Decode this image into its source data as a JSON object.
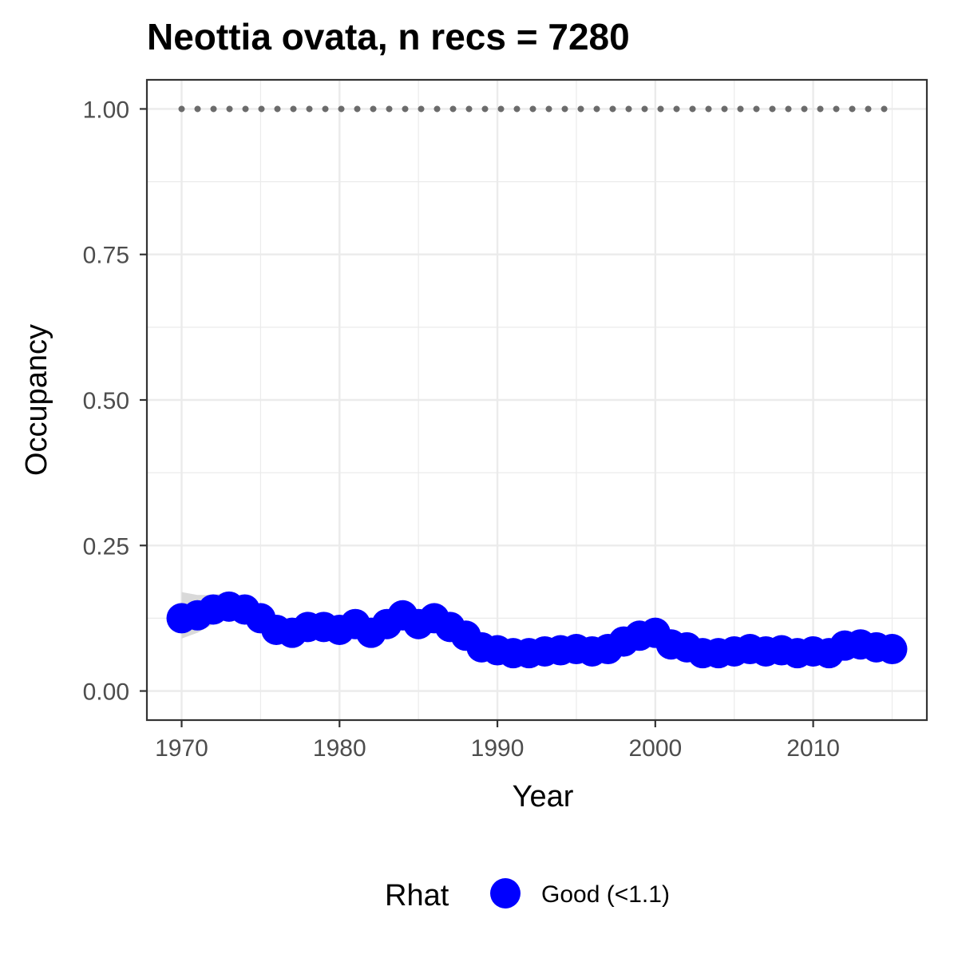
{
  "chart_data": {
    "type": "line",
    "title": "Neottia ovata, n recs = 7280",
    "xlabel": "Year",
    "ylabel": "Occupancy",
    "xlim": [
      1967.8,
      2017.2
    ],
    "ylim": [
      -0.05,
      1.05
    ],
    "x_ticks": [
      1970,
      1980,
      1990,
      2000,
      2010
    ],
    "x_tick_labels": [
      "1970",
      "1980",
      "1990",
      "2000",
      "2010"
    ],
    "y_ticks": [
      0,
      0.25,
      0.5,
      0.75,
      1.0
    ],
    "y_tick_labels": [
      "0.00",
      "0.25",
      "0.50",
      "0.75",
      "1.00"
    ],
    "grid": true,
    "legend": {
      "title": "Rhat",
      "position": "bottom",
      "entries": [
        {
          "label": "Good (<1.1)",
          "color": "#0000ff"
        }
      ]
    },
    "x": [
      1970,
      1971,
      1972,
      1973,
      1974,
      1975,
      1976,
      1977,
      1978,
      1979,
      1980,
      1981,
      1982,
      1983,
      1984,
      1985,
      1986,
      1987,
      1988,
      1989,
      1990,
      1991,
      1992,
      1993,
      1994,
      1995,
      1996,
      1997,
      1998,
      1999,
      2000,
      2001,
      2002,
      2003,
      2004,
      2005,
      2006,
      2007,
      2008,
      2009,
      2010,
      2011,
      2012,
      2013,
      2014,
      2015
    ],
    "series": [
      {
        "name": "Good (<1.1)",
        "color": "#0000ff",
        "values": [
          0.125,
          0.13,
          0.14,
          0.145,
          0.14,
          0.125,
          0.105,
          0.1,
          0.11,
          0.11,
          0.105,
          0.115,
          0.1,
          0.115,
          0.13,
          0.115,
          0.125,
          0.11,
          0.095,
          0.075,
          0.07,
          0.065,
          0.065,
          0.068,
          0.07,
          0.072,
          0.068,
          0.072,
          0.085,
          0.095,
          0.1,
          0.08,
          0.075,
          0.065,
          0.065,
          0.068,
          0.072,
          0.068,
          0.07,
          0.065,
          0.068,
          0.065,
          0.078,
          0.08,
          0.075,
          0.072
        ],
        "lower": [
          0.09,
          0.1,
          0.115,
          0.125,
          0.125,
          0.11,
          0.095,
          0.09,
          0.1,
          0.1,
          0.095,
          0.105,
          0.09,
          0.105,
          0.12,
          0.105,
          0.115,
          0.1,
          0.085,
          0.068,
          0.063,
          0.058,
          0.058,
          0.061,
          0.063,
          0.065,
          0.061,
          0.065,
          0.078,
          0.088,
          0.093,
          0.073,
          0.068,
          0.058,
          0.058,
          0.061,
          0.065,
          0.061,
          0.063,
          0.058,
          0.061,
          0.058,
          0.071,
          0.073,
          0.068,
          0.065
        ],
        "upper": [
          0.17,
          0.165,
          0.165,
          0.17,
          0.158,
          0.14,
          0.118,
          0.112,
          0.122,
          0.122,
          0.117,
          0.127,
          0.112,
          0.127,
          0.142,
          0.127,
          0.137,
          0.122,
          0.107,
          0.085,
          0.079,
          0.074,
          0.074,
          0.077,
          0.079,
          0.081,
          0.077,
          0.081,
          0.094,
          0.104,
          0.109,
          0.089,
          0.084,
          0.074,
          0.074,
          0.077,
          0.081,
          0.077,
          0.079,
          0.074,
          0.077,
          0.074,
          0.087,
          0.089,
          0.084,
          0.081
        ]
      }
    ],
    "reference_line": {
      "y": 1.0,
      "style": "dotted",
      "color": "#6b6b6b"
    },
    "ribbon_color": "#d9d9d9"
  }
}
